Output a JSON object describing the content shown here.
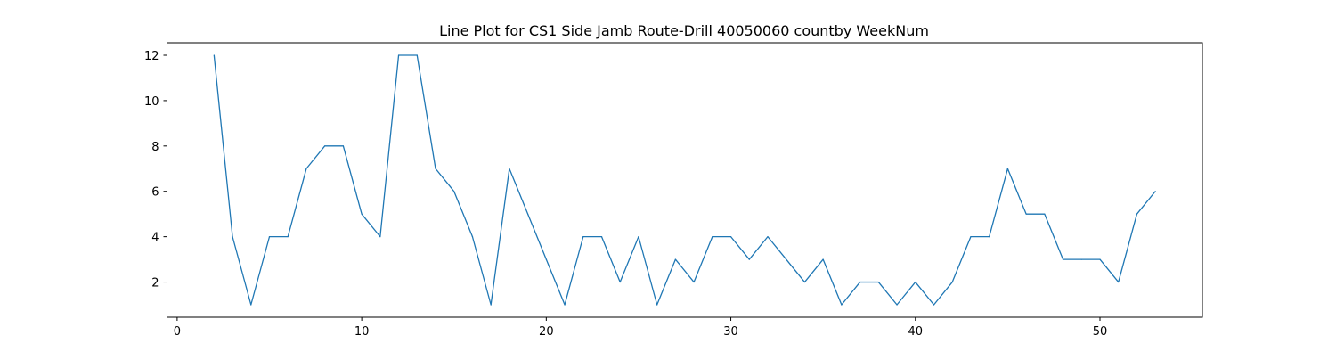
{
  "chart_data": {
    "type": "line",
    "title": "Line Plot for CS1 Side Jamb Route-Drill 40050060 countby WeekNum",
    "xlabel": "",
    "ylabel": "",
    "xlim": [
      -0.55,
      55.55
    ],
    "ylim": [
      0.45,
      12.55
    ],
    "xticks": [
      0,
      10,
      20,
      30,
      40,
      50
    ],
    "yticks": [
      2,
      4,
      6,
      8,
      10,
      12
    ],
    "grid": false,
    "legend": "none",
    "line_color": "#1f77b4",
    "series": [
      {
        "x": [
          2,
          3,
          4,
          5,
          6,
          7,
          8,
          9,
          10,
          11,
          12,
          13,
          14,
          15,
          16,
          17,
          18,
          19,
          20,
          21,
          22,
          23,
          24,
          25,
          26,
          27,
          28,
          29,
          30,
          31,
          32,
          33,
          34,
          35,
          36,
          37,
          38,
          39,
          40,
          41,
          42,
          43,
          44,
          45,
          46,
          47,
          48,
          49,
          50,
          51,
          52,
          53
        ],
        "values": [
          12,
          4,
          1,
          4,
          4,
          7,
          8,
          8,
          5,
          4,
          12,
          12,
          7,
          6,
          4,
          1,
          7,
          5,
          3,
          1,
          4,
          4,
          2,
          4,
          1,
          3,
          2,
          4,
          4,
          3,
          4,
          3,
          2,
          3,
          1,
          2,
          2,
          1,
          2,
          1,
          2,
          4,
          4,
          7,
          5,
          5,
          3,
          3,
          3,
          2,
          5,
          6
        ]
      }
    ]
  }
}
